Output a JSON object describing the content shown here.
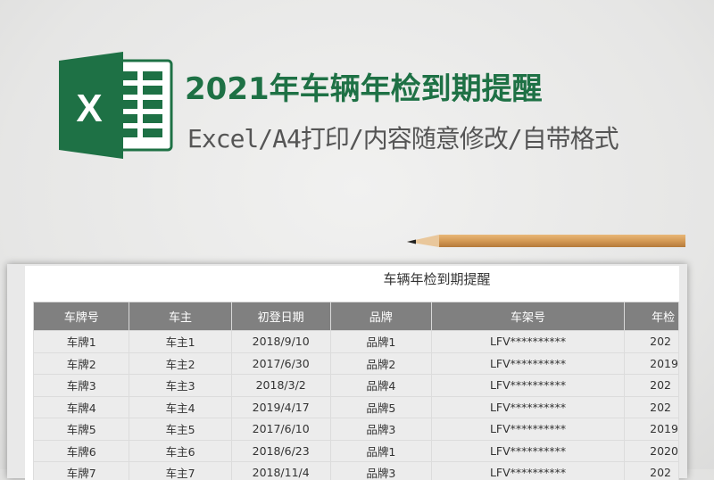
{
  "banner": {
    "title": "2021年车辆年检到期提醒",
    "subtitle": "Excel/A4打印/内容随意修改/自带格式",
    "logo_icon": "excel-logo-icon",
    "logo_letter": "X",
    "accent_color": "#1e7145"
  },
  "sheet": {
    "title": "车辆年检到期提醒",
    "headers": [
      "车牌号",
      "车主",
      "初登日期",
      "品牌",
      "车架号",
      "年检"
    ],
    "rows": [
      [
        "车牌1",
        "车主1",
        "2018/9/10",
        "品牌1",
        "LFV**********",
        "202"
      ],
      [
        "车牌2",
        "车主2",
        "2017/6/30",
        "品牌2",
        "LFV**********",
        "2019"
      ],
      [
        "车牌3",
        "车主3",
        "2018/3/2",
        "品牌4",
        "LFV**********",
        "202"
      ],
      [
        "车牌4",
        "车主4",
        "2019/4/17",
        "品牌5",
        "LFV**********",
        "202"
      ],
      [
        "车牌5",
        "车主5",
        "2017/6/10",
        "品牌3",
        "LFV**********",
        "2019"
      ],
      [
        "车牌6",
        "车主6",
        "2018/6/23",
        "品牌1",
        "LFV**********",
        "2020"
      ],
      [
        "车牌7",
        "车主7",
        "2018/11/4",
        "品牌3",
        "LFV**********",
        "202"
      ]
    ]
  }
}
